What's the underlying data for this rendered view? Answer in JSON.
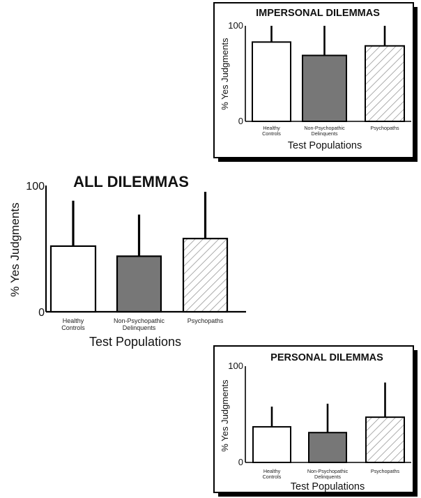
{
  "chart_data": [
    {
      "type": "bar",
      "title": "IMPERSONAL DILEMMAS",
      "ylabel": "% Yes Judgments",
      "xlabel": "Test Populations",
      "ylim": [
        0,
        100
      ],
      "yticks": [
        "0",
        "100"
      ],
      "categories": [
        [
          "Healthy",
          "Controls"
        ],
        [
          "Non-Psychopathic",
          "Delinquents"
        ],
        [
          "Psychopaths"
        ]
      ],
      "values": [
        83,
        69,
        79
      ],
      "error_upper": [
        100,
        100,
        100
      ],
      "bar_fills": [
        "white",
        "#777777",
        "hatch"
      ],
      "boxed": true
    },
    {
      "type": "bar",
      "title": "ALL DILEMMAS",
      "ylabel": "% Yes Judgments",
      "xlabel": "Test Populations",
      "ylim": [
        0,
        100
      ],
      "yticks": [
        "0",
        "100"
      ],
      "categories": [
        [
          "Healthy",
          "Controls"
        ],
        [
          "Non-Psychopathic",
          "Delinquents"
        ],
        [
          "Psychopaths"
        ]
      ],
      "values": [
        52,
        44,
        58
      ],
      "error_upper": [
        88,
        77,
        95
      ],
      "bar_fills": [
        "white",
        "#777777",
        "hatch"
      ],
      "boxed": false
    },
    {
      "type": "bar",
      "title": "PERSONAL DILEMMAS",
      "ylabel": "% Yes Judgments",
      "xlabel": "Test Populations",
      "ylim": [
        0,
        100
      ],
      "yticks": [
        "0",
        "100"
      ],
      "categories": [
        [
          "Healthy",
          "Controls"
        ],
        [
          "Non-Psychopathic",
          "Delinquents"
        ],
        [
          "Psychopaths"
        ]
      ],
      "values": [
        37,
        31,
        47
      ],
      "error_upper": [
        58,
        61,
        83
      ],
      "bar_fills": [
        "white",
        "#777777",
        "hatch"
      ],
      "boxed": true
    }
  ]
}
